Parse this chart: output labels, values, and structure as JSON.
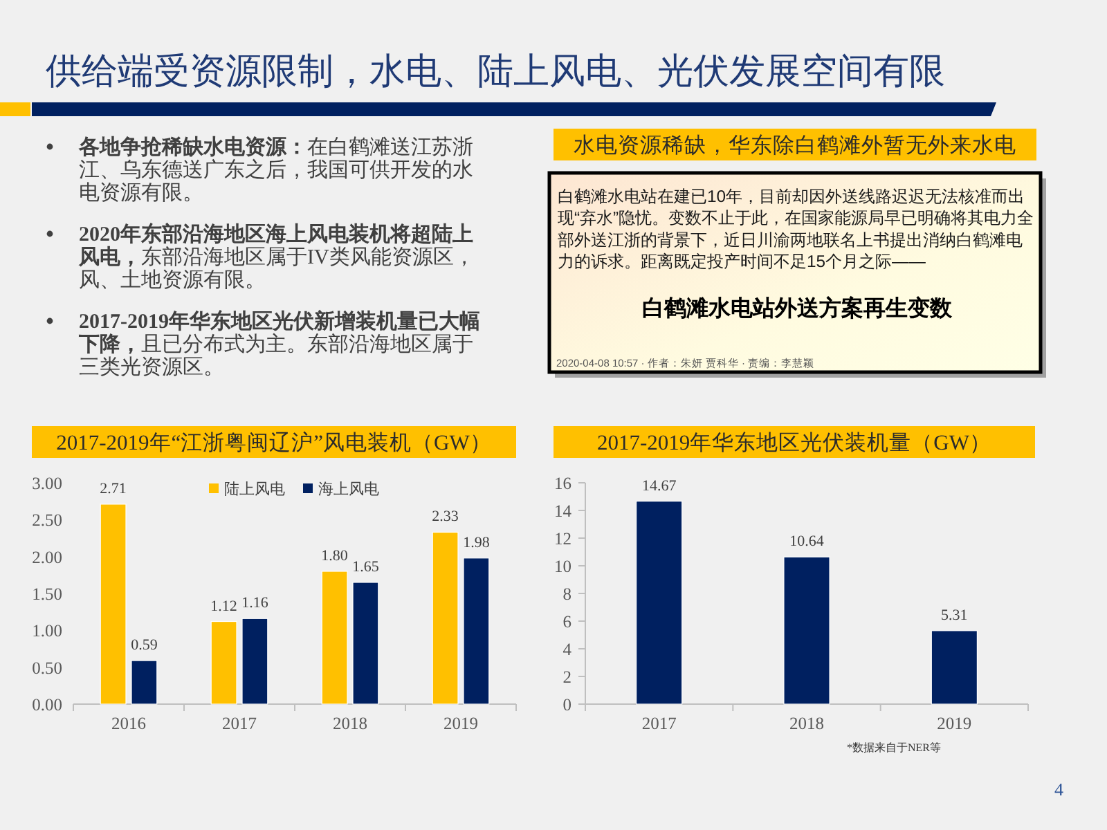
{
  "chart_data": [
    {
      "type": "other",
      "title": "供给端受资源限制，水电、陆上风电、光伏发展空间有限",
      "annotations": [
        "各地争抢稀缺水电资源：在白鹤滩送江苏浙江、乌东德送广东之后，我国可供开发的水电资源有限。",
        "2020年东部沿海地区海上风电装机将超陆上风电，东部沿海地区属于IV类风能资源区，风、土地资源有限。",
        "2017-2019年华东地区光伏新增装机量已大幅下降，且已分布式为主。东部沿海地区属于三类光资源区。",
        "4"
      ]
    },
    {
      "type": "other",
      "title": "水电资源稀缺，华东除白鹤滩外暂无外来水电",
      "annotations": [
        "白鹤滩水电站在建已10年，目前却因外送线路迟迟无法核准而出现“弃水”隐忧。变数不止于此，在国家能源局早已明确将其电力全部外送江浙的背景下，近日川渝两地联名上书提出消纳白鹤滩电力的诉求。距离既定投产时间不足15个月之际——",
        "白鹤滩水电站外送方案再生变数",
        "2020-04-08 10:57 · 作者：朱妍 贾科华 · 责编：李慧颖"
      ]
    },
    {
      "type": "bar",
      "title": "2017-2019年“江浙粤闽辽沪”风电装机（GW）",
      "categories": [
        "2016",
        "2017",
        "2018",
        "2019"
      ],
      "series": [
        {
          "name": "陆上风电",
          "color": "#ffc000",
          "values": [
            2.71,
            1.12,
            1.8,
            2.33
          ],
          "value_labels": [
            "2.71",
            "1.12",
            "1.80",
            "2.33"
          ]
        },
        {
          "name": "海上风电",
          "color": "#002060",
          "values": [
            0.59,
            1.16,
            1.65,
            1.98
          ],
          "value_labels": [
            "0.59",
            "1.16",
            "1.65",
            "1.98"
          ]
        }
      ],
      "ylim": [
        0,
        3
      ],
      "yticks": [
        {
          "value": 0,
          "label": "0.00"
        },
        {
          "value": 0.5,
          "label": "0.50"
        },
        {
          "value": 1,
          "label": "1.00"
        },
        {
          "value": 1.5,
          "label": "1.50"
        },
        {
          "value": 2,
          "label": "2.00"
        },
        {
          "value": 2.5,
          "label": "2.50"
        },
        {
          "value": 3,
          "label": "3.00"
        }
      ],
      "legend": "top"
    },
    {
      "type": "bar",
      "title": "2017-2019年华东地区光伏装机量（GW）",
      "categories": [
        "2017",
        "2018",
        "2019"
      ],
      "values": [
        14.67,
        10.64,
        5.31
      ],
      "color": "#002060",
      "data_labels": true,
      "ylim": [
        0,
        16
      ],
      "yticks": [
        0,
        2,
        4,
        6,
        8,
        10,
        12,
        14,
        16
      ],
      "annotations": [
        "*数据来自于NER等"
      ]
    }
  ]
}
